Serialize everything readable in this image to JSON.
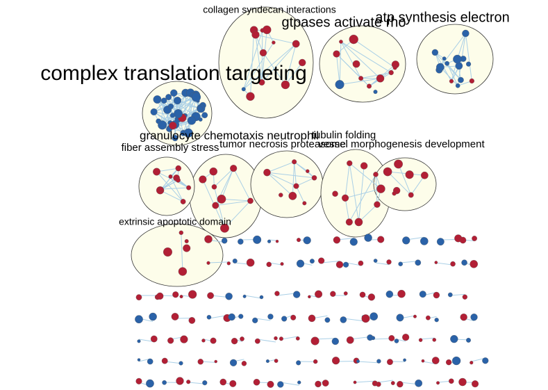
{
  "clusters": [
    {
      "label": "collagen syndecan interactions"
    },
    {
      "label": "gtpases activate rho"
    },
    {
      "label": "atp synthesis electron"
    },
    {
      "label": "complex translation targeting"
    },
    {
      "label": "granulocyte chemotaxis neutrophil"
    },
    {
      "label": "fiber assembly stress"
    },
    {
      "label": "tumor necrosis proteasome"
    },
    {
      "label": "tubulin folding"
    },
    {
      "label": "vessel morphogenesis development"
    },
    {
      "label": "extrinsic apoptotic domain"
    }
  ]
}
